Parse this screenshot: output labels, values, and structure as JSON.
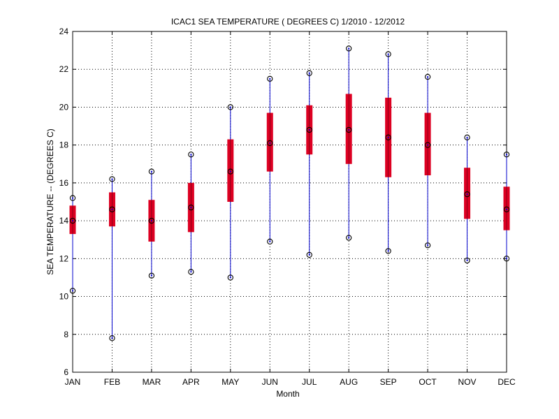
{
  "chart_data": {
    "type": "box",
    "title": "ICAC1  SEA TEMPERATURE ( DEGREES C) 1/2010 - 12/2012",
    "xlabel": "Month",
    "ylabel": "SEA TEMPERATURE -- (DEGREES C)",
    "ylim": [
      6,
      24
    ],
    "yticks": [
      6,
      8,
      10,
      12,
      14,
      16,
      18,
      20,
      22,
      24
    ],
    "grid": true,
    "categories": [
      "JAN",
      "FEB",
      "MAR",
      "APR",
      "MAY",
      "JUN",
      "JUL",
      "AUG",
      "SEP",
      "OCT",
      "NOV",
      "DEC"
    ],
    "min": [
      10.3,
      7.8,
      11.1,
      11.3,
      11.0,
      12.9,
      12.2,
      13.1,
      12.4,
      12.7,
      11.9,
      12.0
    ],
    "q1": [
      13.3,
      13.7,
      12.9,
      13.4,
      15.0,
      16.6,
      17.5,
      17.0,
      16.3,
      16.4,
      14.1,
      13.5
    ],
    "median": [
      14.0,
      14.6,
      14.0,
      14.7,
      16.6,
      18.1,
      18.8,
      18.8,
      18.4,
      18.0,
      15.4,
      14.6
    ],
    "q3": [
      14.8,
      15.5,
      15.1,
      16.0,
      18.3,
      19.7,
      20.1,
      20.7,
      20.5,
      19.7,
      16.8,
      15.8
    ],
    "max": [
      15.2,
      16.2,
      16.6,
      17.5,
      20.0,
      21.5,
      21.8,
      23.1,
      22.8,
      21.6,
      18.4,
      17.5
    ],
    "colors": {
      "whisker": "#0000cc",
      "box": "#dd0022",
      "marker": "#000000",
      "grid": "#000000"
    }
  }
}
